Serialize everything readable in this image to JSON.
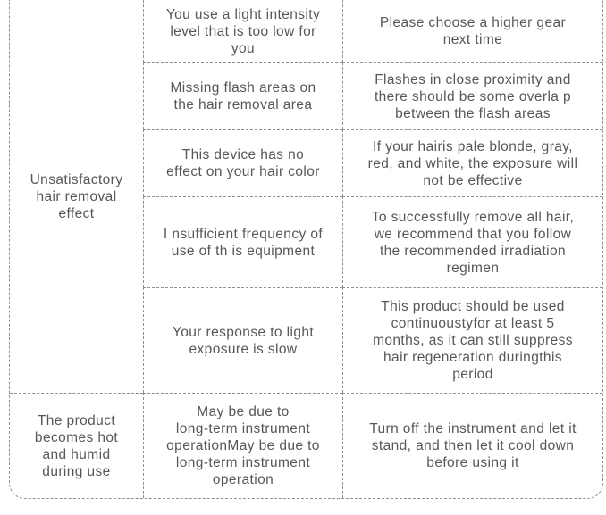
{
  "colors": {
    "text": "#575757",
    "border": "#8f8f8f",
    "background": "#ffffff"
  },
  "table": {
    "name": "troubleshooting-table",
    "groups": [
      {
        "problem": "Unsatisfactory\nhair removal\neffect",
        "rows": [
          {
            "cause": "You use a light intensity\nlevel that is too low for\nyou",
            "solution": "Please choose a higher gear\nnext time"
          },
          {
            "cause": "Missing flash areas on\nthe hair removal area",
            "solution": "Flashes in close proximity and\nthere should be some overla p\nbetween the flash areas"
          },
          {
            "cause": "This device has no\neffect on your hair color",
            "solution": "If your hairis pale blonde, gray,\nred, and white, the exposure will\nnot be effective"
          },
          {
            "cause": "I nsufficient frequency of\nuse of th is equipment",
            "solution": "To successfully remove all hair,\nwe recommend that you follow\nthe recommended irradiation\nregimen"
          },
          {
            "cause": "Your response to light\nexposure is slow",
            "solution": "This product should be used\ncontinuoustyfor at least 5\nmonths, as it can still suppress\nhair regeneration duringthis\nperiod"
          }
        ]
      },
      {
        "problem": "The product\nbecomes hot\nand humid\nduring use",
        "rows": [
          {
            "cause": "May be due to\nlong-term instrument\noperationMay be due to\nlong-term instrument\noperation",
            "solution": "Turn off the instrument and let it\nstand, and then let it cool down\nbefore using it"
          }
        ]
      }
    ]
  }
}
